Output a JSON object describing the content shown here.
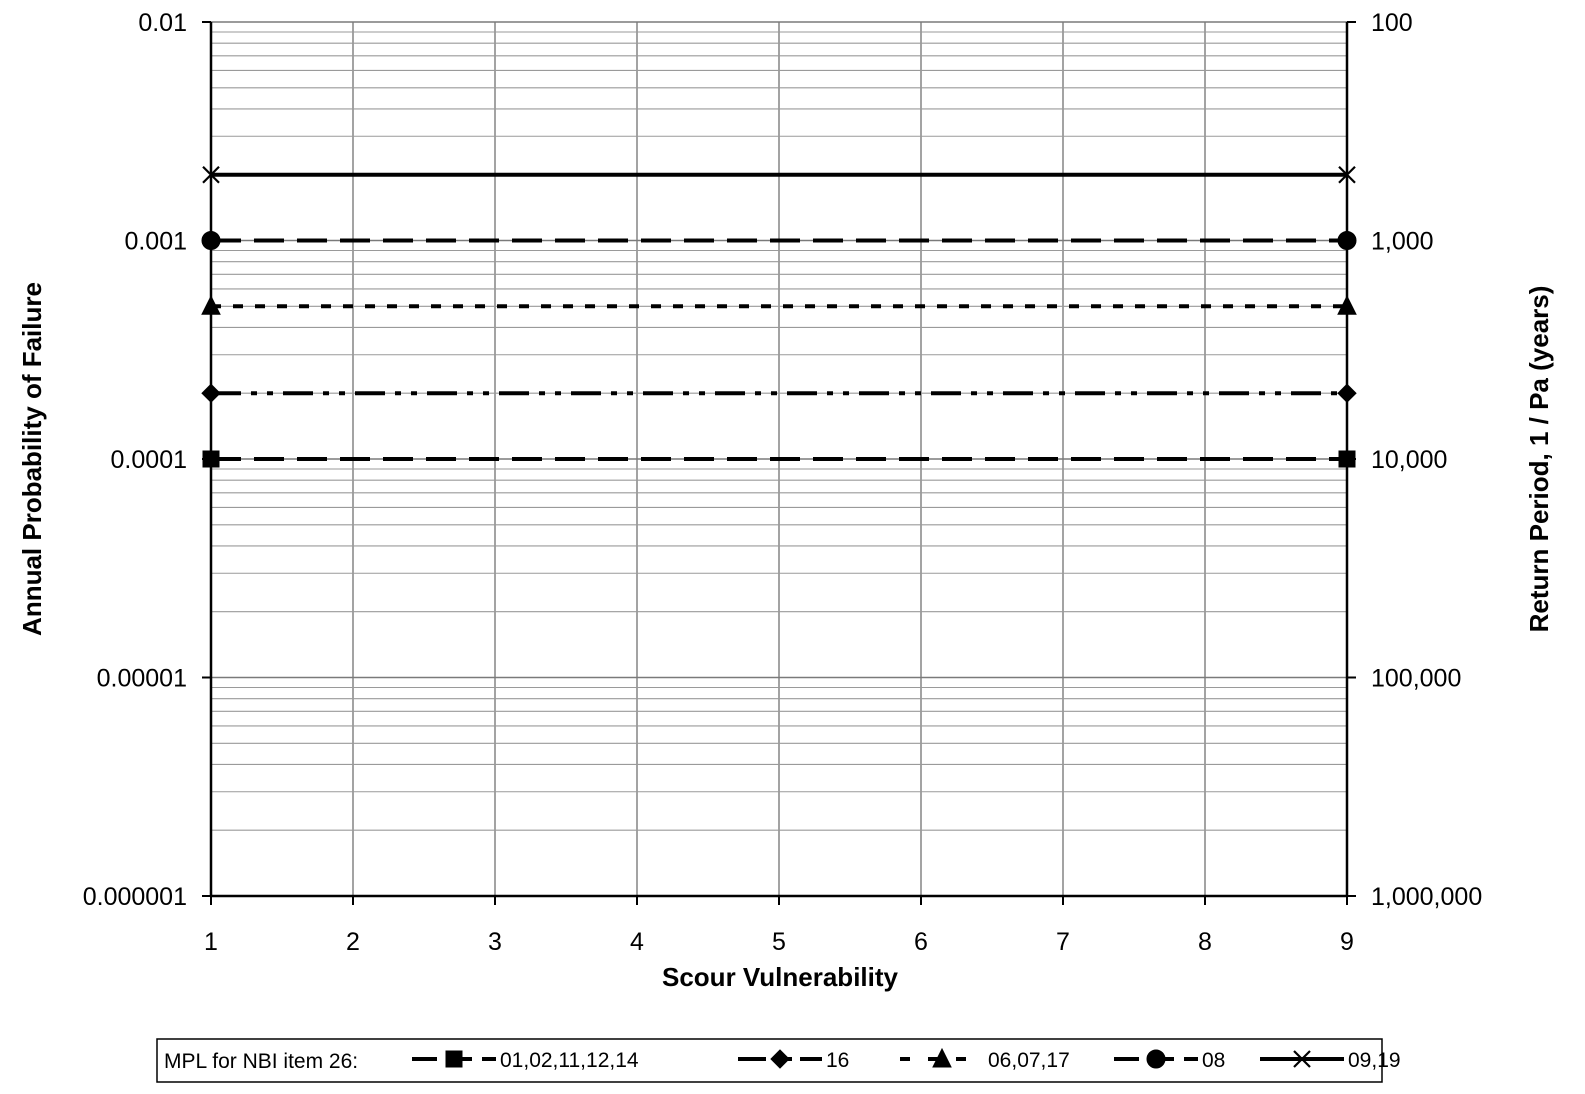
{
  "chart_data": {
    "type": "line",
    "x_axis": {
      "label": "Scour Vulnerability",
      "range": [
        1,
        9
      ],
      "ticks": [
        "1",
        "2",
        "3",
        "4",
        "5",
        "6",
        "7",
        "8",
        "9"
      ]
    },
    "y_axis_left": {
      "label": "Annual Probability of Failure",
      "scale": "log",
      "range": [
        1e-06,
        0.01
      ],
      "ticks": [
        {
          "value": 0.01,
          "label": "0.01"
        },
        {
          "value": 0.001,
          "label": "0.001"
        },
        {
          "value": 0.0001,
          "label": "0.0001"
        },
        {
          "value": 1e-05,
          "label": "0.00001"
        },
        {
          "value": 1e-06,
          "label": "0.000001"
        }
      ]
    },
    "y_axis_right": {
      "label": "Return Period, 1 / Pa (years)",
      "scale": "log",
      "range": [
        100,
        1000000
      ],
      "ticks": [
        {
          "value": 100,
          "label": "100"
        },
        {
          "value": 1000,
          "label": "1,000"
        },
        {
          "value": 10000,
          "label": "10,000"
        },
        {
          "value": 100000,
          "label": "100,000"
        },
        {
          "value": 1000000,
          "label": "1,000,000"
        }
      ]
    },
    "grid": true,
    "legend": {
      "position": "bottom",
      "prefix": "MPL for NBI item 26:"
    },
    "series": [
      {
        "name": "01,02,11,12,14",
        "marker": "square",
        "dash": "long-dash",
        "x": [
          1,
          9
        ],
        "y": [
          0.0001,
          0.0001
        ]
      },
      {
        "name": "16",
        "marker": "diamond",
        "dash": "dash-dot-dot",
        "x": [
          1,
          9
        ],
        "y": [
          0.0002,
          0.0002
        ]
      },
      {
        "name": "06,07,17",
        "marker": "triangle",
        "dash": "short-dash",
        "x": [
          1,
          9
        ],
        "y": [
          0.0005,
          0.0005
        ]
      },
      {
        "name": "08",
        "marker": "circle",
        "dash": "long-dash",
        "x": [
          1,
          9
        ],
        "y": [
          0.001,
          0.001
        ]
      },
      {
        "name": "09,19",
        "marker": "x",
        "dash": "solid",
        "x": [
          1,
          9
        ],
        "y": [
          0.002,
          0.002
        ]
      }
    ]
  }
}
